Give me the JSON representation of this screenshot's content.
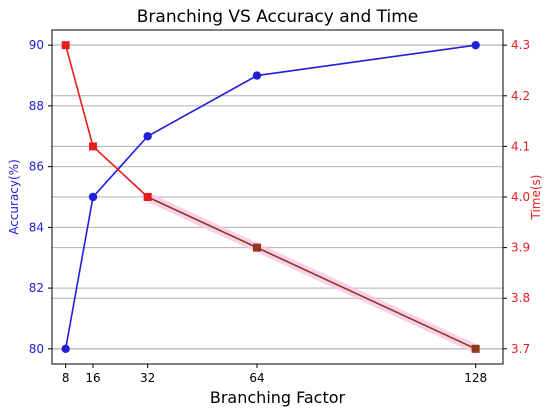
{
  "chart_data": {
    "type": "line",
    "title": "Branching VS Accuracy and Time",
    "xlabel": "Branching Factor",
    "x": [
      8,
      16,
      32,
      64,
      128
    ],
    "x_tick_labels": [
      "8",
      "16",
      "32",
      "64",
      "128"
    ],
    "xlim": [
      4,
      136
    ],
    "grid": "horizontal",
    "series": [
      {
        "name": "Accuracy(%)",
        "axis": "left",
        "color": "#1f1fdc",
        "marker": "circle",
        "values": [
          80,
          85,
          87,
          89,
          90
        ]
      },
      {
        "name": "Time(s)",
        "axis": "right",
        "color": "#e81c1c",
        "marker": "square",
        "values": [
          4.3,
          4.1,
          4.0,
          3.9,
          3.7
        ]
      }
    ],
    "y_left": {
      "label": "Accuracy(%)",
      "color": "#1f1fdc",
      "lim": [
        79.5,
        90.5
      ],
      "ticks": [
        80,
        82,
        84,
        86,
        88,
        90
      ],
      "tick_labels": [
        "80",
        "82",
        "84",
        "86",
        "88",
        "90"
      ]
    },
    "y_right": {
      "label": "Time(s)",
      "color": "#e81c1c",
      "lim": [
        3.67,
        4.33
      ],
      "ticks": [
        3.7,
        3.8,
        3.9,
        4.0,
        4.1,
        4.2,
        4.3
      ],
      "tick_labels": [
        "3.7",
        "3.8",
        "3.9",
        "4.0",
        "4.1",
        "4.2",
        "4.3"
      ]
    },
    "overlap_color": "#8b3a1a",
    "highlight_color": "#f7c6e8"
  }
}
